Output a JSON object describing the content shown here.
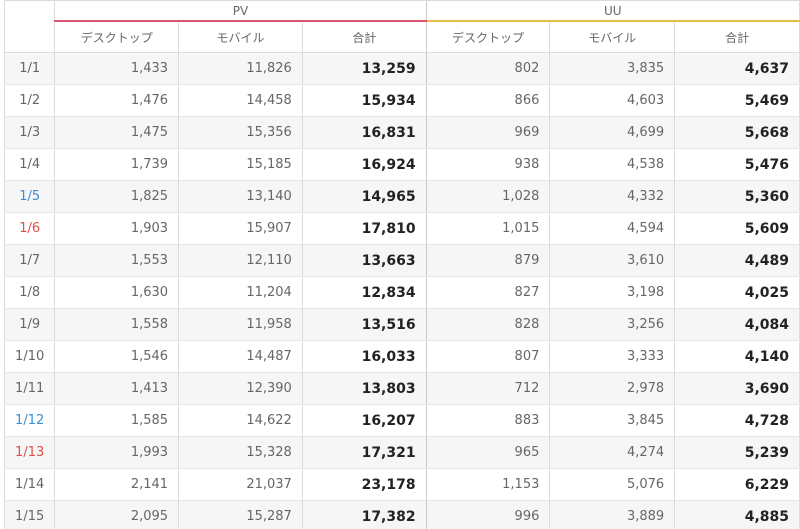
{
  "groups": {
    "pv": "PV",
    "uu": "UU"
  },
  "columns": {
    "desktop": "デスクトップ",
    "mobile": "モバイル",
    "total": "合計"
  },
  "colors": {
    "pv_accent": "#d9536f",
    "uu_accent": "#e7bc43",
    "saturday": "#3a8fd6",
    "sunday": "#e0504a"
  },
  "rows": [
    {
      "date": "1/1",
      "day": "weekday",
      "pv_desktop": "1,433",
      "pv_mobile": "11,826",
      "pv_total": "13,259",
      "uu_desktop": "802",
      "uu_mobile": "3,835",
      "uu_total": "4,637"
    },
    {
      "date": "1/2",
      "day": "weekday",
      "pv_desktop": "1,476",
      "pv_mobile": "14,458",
      "pv_total": "15,934",
      "uu_desktop": "866",
      "uu_mobile": "4,603",
      "uu_total": "5,469"
    },
    {
      "date": "1/3",
      "day": "weekday",
      "pv_desktop": "1,475",
      "pv_mobile": "15,356",
      "pv_total": "16,831",
      "uu_desktop": "969",
      "uu_mobile": "4,699",
      "uu_total": "5,668"
    },
    {
      "date": "1/4",
      "day": "weekday",
      "pv_desktop": "1,739",
      "pv_mobile": "15,185",
      "pv_total": "16,924",
      "uu_desktop": "938",
      "uu_mobile": "4,538",
      "uu_total": "5,476"
    },
    {
      "date": "1/5",
      "day": "saturday",
      "pv_desktop": "1,825",
      "pv_mobile": "13,140",
      "pv_total": "14,965",
      "uu_desktop": "1,028",
      "uu_mobile": "4,332",
      "uu_total": "5,360"
    },
    {
      "date": "1/6",
      "day": "sunday",
      "pv_desktop": "1,903",
      "pv_mobile": "15,907",
      "pv_total": "17,810",
      "uu_desktop": "1,015",
      "uu_mobile": "4,594",
      "uu_total": "5,609"
    },
    {
      "date": "1/7",
      "day": "weekday",
      "pv_desktop": "1,553",
      "pv_mobile": "12,110",
      "pv_total": "13,663",
      "uu_desktop": "879",
      "uu_mobile": "3,610",
      "uu_total": "4,489"
    },
    {
      "date": "1/8",
      "day": "weekday",
      "pv_desktop": "1,630",
      "pv_mobile": "11,204",
      "pv_total": "12,834",
      "uu_desktop": "827",
      "uu_mobile": "3,198",
      "uu_total": "4,025"
    },
    {
      "date": "1/9",
      "day": "weekday",
      "pv_desktop": "1,558",
      "pv_mobile": "11,958",
      "pv_total": "13,516",
      "uu_desktop": "828",
      "uu_mobile": "3,256",
      "uu_total": "4,084"
    },
    {
      "date": "1/10",
      "day": "weekday",
      "pv_desktop": "1,546",
      "pv_mobile": "14,487",
      "pv_total": "16,033",
      "uu_desktop": "807",
      "uu_mobile": "3,333",
      "uu_total": "4,140"
    },
    {
      "date": "1/11",
      "day": "weekday",
      "pv_desktop": "1,413",
      "pv_mobile": "12,390",
      "pv_total": "13,803",
      "uu_desktop": "712",
      "uu_mobile": "2,978",
      "uu_total": "3,690"
    },
    {
      "date": "1/12",
      "day": "saturday",
      "pv_desktop": "1,585",
      "pv_mobile": "14,622",
      "pv_total": "16,207",
      "uu_desktop": "883",
      "uu_mobile": "3,845",
      "uu_total": "4,728"
    },
    {
      "date": "1/13",
      "day": "sunday",
      "pv_desktop": "1,993",
      "pv_mobile": "15,328",
      "pv_total": "17,321",
      "uu_desktop": "965",
      "uu_mobile": "4,274",
      "uu_total": "5,239"
    },
    {
      "date": "1/14",
      "day": "weekday",
      "pv_desktop": "2,141",
      "pv_mobile": "21,037",
      "pv_total": "23,178",
      "uu_desktop": "1,153",
      "uu_mobile": "5,076",
      "uu_total": "6,229"
    },
    {
      "date": "1/15",
      "day": "weekday",
      "pv_desktop": "2,095",
      "pv_mobile": "15,287",
      "pv_total": "17,382",
      "uu_desktop": "996",
      "uu_mobile": "3,889",
      "uu_total": "4,885"
    }
  ]
}
